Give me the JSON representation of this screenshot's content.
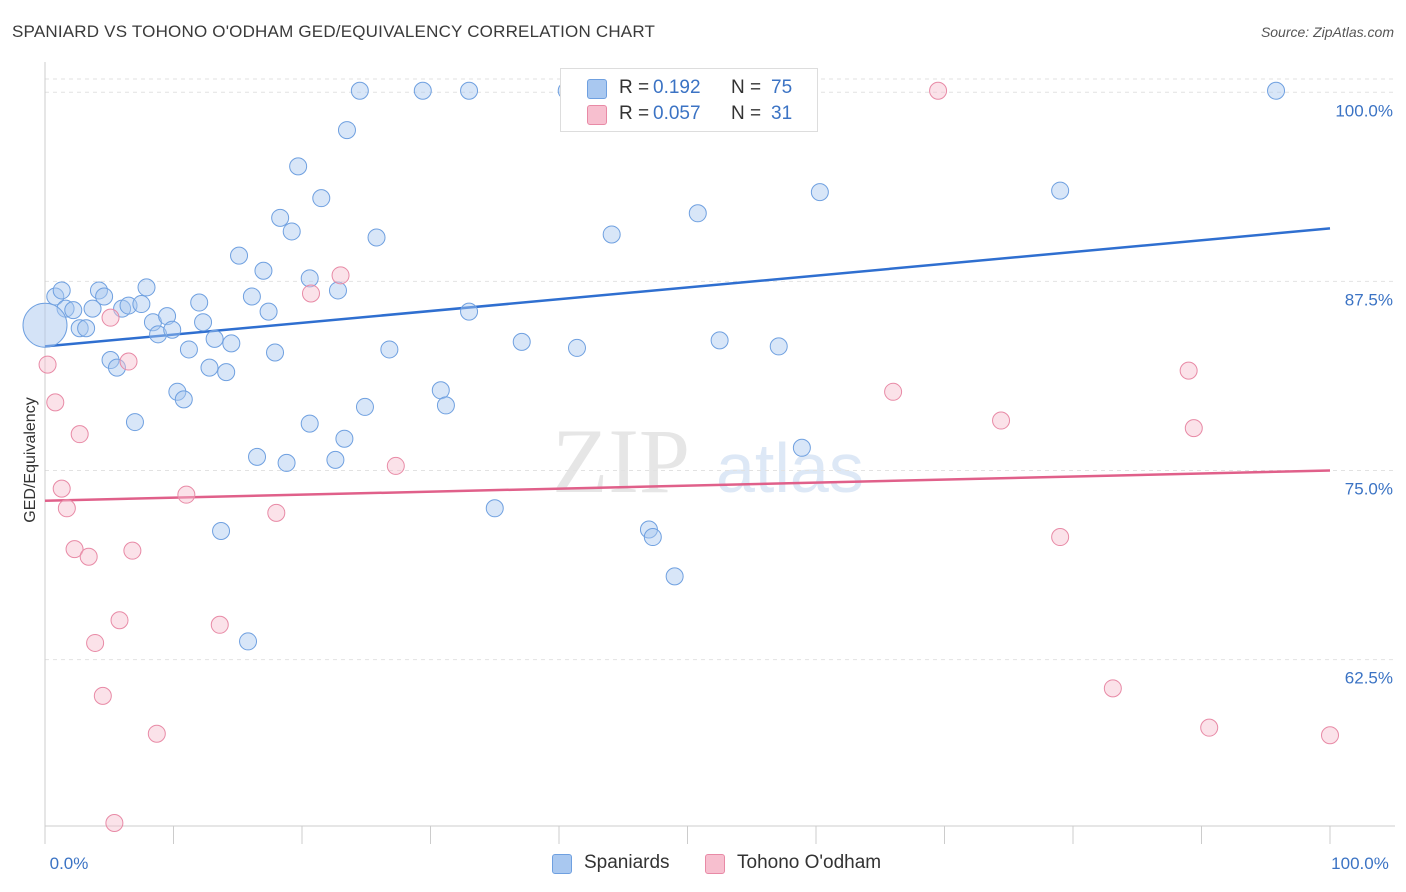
{
  "title": "SPANIARD VS TOHONO O'ODHAM GED/EQUIVALENCY CORRELATION CHART",
  "source": "Source: ZipAtlas.com",
  "watermark": {
    "zip": "ZIP",
    "atlas": "atlas"
  },
  "legend": {
    "r_label": "R =",
    "n_label": "N =",
    "rows": [
      {
        "r": "0.192",
        "n": "75",
        "color": "#a9c8f0",
        "border": "#6fa0e0"
      },
      {
        "r": "0.057",
        "n": "31",
        "color": "#f7bfcf",
        "border": "#e88aa6"
      }
    ]
  },
  "bottom_legend": [
    {
      "label": "Spaniards",
      "color": "#a9c8f0",
      "border": "#6fa0e0"
    },
    {
      "label": "Tohono O'odham",
      "color": "#f7bfcf",
      "border": "#e88aa6"
    }
  ],
  "chart_data": {
    "type": "scatter",
    "ylabel": "GED/Equivalency",
    "xlim": [
      0,
      100
    ],
    "ylim": [
      51.5,
      102
    ],
    "x_tick_labels": [
      "0.0%",
      "100.0%"
    ],
    "y_ticks": [
      {
        "value": 100.0,
        "label": "100.0%"
      },
      {
        "value": 87.5,
        "label": "87.5%"
      },
      {
        "value": 75.0,
        "label": "75.0%"
      },
      {
        "value": 62.5,
        "label": "62.5%"
      }
    ],
    "grid": "dashed horizontal",
    "series": [
      {
        "name": "Spaniards",
        "color": "#a9c8f0",
        "stroke": "#6fa0e0",
        "line_color": "#2f6fd0",
        "trend": {
          "x": [
            0,
            100
          ],
          "y": [
            83.2,
            91.0
          ]
        },
        "points": [
          {
            "x": 0.8,
            "y": 86.5
          },
          {
            "x": 1.3,
            "y": 86.9
          },
          {
            "x": 1.6,
            "y": 85.7
          },
          {
            "x": 2.2,
            "y": 85.6
          },
          {
            "x": 2.7,
            "y": 84.4
          },
          {
            "x": 3.2,
            "y": 84.4
          },
          {
            "x": 3.7,
            "y": 85.7
          },
          {
            "x": 4.2,
            "y": 86.9
          },
          {
            "x": 4.6,
            "y": 86.5
          },
          {
            "x": 5.1,
            "y": 82.3
          },
          {
            "x": 5.6,
            "y": 81.8
          },
          {
            "x": 6.0,
            "y": 85.7
          },
          {
            "x": 6.5,
            "y": 85.9
          },
          {
            "x": 7.0,
            "y": 78.2
          },
          {
            "x": 7.5,
            "y": 86.0
          },
          {
            "x": 7.9,
            "y": 87.1
          },
          {
            "x": 8.4,
            "y": 84.8
          },
          {
            "x": 8.8,
            "y": 84.0
          },
          {
            "x": 9.5,
            "y": 85.2
          },
          {
            "x": 9.9,
            "y": 84.3
          },
          {
            "x": 10.3,
            "y": 80.2
          },
          {
            "x": 10.8,
            "y": 79.7
          },
          {
            "x": 11.2,
            "y": 83.0
          },
          {
            "x": 12.0,
            "y": 86.1
          },
          {
            "x": 12.3,
            "y": 84.8
          },
          {
            "x": 12.8,
            "y": 81.8
          },
          {
            "x": 13.2,
            "y": 83.7
          },
          {
            "x": 13.7,
            "y": 71.0
          },
          {
            "x": 14.1,
            "y": 81.5
          },
          {
            "x": 14.5,
            "y": 83.4
          },
          {
            "x": 15.1,
            "y": 89.2
          },
          {
            "x": 15.8,
            "y": 63.7
          },
          {
            "x": 16.1,
            "y": 86.5
          },
          {
            "x": 16.5,
            "y": 75.9
          },
          {
            "x": 17.0,
            "y": 88.2
          },
          {
            "x": 17.4,
            "y": 85.5
          },
          {
            "x": 17.9,
            "y": 82.8
          },
          {
            "x": 18.3,
            "y": 91.7
          },
          {
            "x": 18.8,
            "y": 75.5
          },
          {
            "x": 19.2,
            "y": 90.8
          },
          {
            "x": 19.7,
            "y": 95.1
          },
          {
            "x": 20.6,
            "y": 87.7
          },
          {
            "x": 20.6,
            "y": 78.1
          },
          {
            "x": 21.5,
            "y": 93.0
          },
          {
            "x": 22.6,
            "y": 75.7
          },
          {
            "x": 22.8,
            "y": 86.9
          },
          {
            "x": 23.3,
            "y": 77.1
          },
          {
            "x": 23.5,
            "y": 97.5
          },
          {
            "x": 24.5,
            "y": 100.1
          },
          {
            "x": 24.9,
            "y": 79.2
          },
          {
            "x": 25.8,
            "y": 90.4
          },
          {
            "x": 26.8,
            "y": 83.0
          },
          {
            "x": 29.4,
            "y": 100.1
          },
          {
            "x": 30.8,
            "y": 80.3
          },
          {
            "x": 31.2,
            "y": 79.3
          },
          {
            "x": 33.0,
            "y": 100.1
          },
          {
            "x": 33.0,
            "y": 85.5
          },
          {
            "x": 35.0,
            "y": 72.5
          },
          {
            "x": 37.1,
            "y": 83.5
          },
          {
            "x": 40.6,
            "y": 100.1
          },
          {
            "x": 41.4,
            "y": 83.1
          },
          {
            "x": 44.1,
            "y": 99.6
          },
          {
            "x": 44.1,
            "y": 90.6
          },
          {
            "x": 47.0,
            "y": 71.1
          },
          {
            "x": 47.3,
            "y": 70.6
          },
          {
            "x": 49.0,
            "y": 68.0
          },
          {
            "x": 49.4,
            "y": 100.1
          },
          {
            "x": 50.8,
            "y": 92.0
          },
          {
            "x": 52.5,
            "y": 83.6
          },
          {
            "x": 57.1,
            "y": 83.2
          },
          {
            "x": 58.9,
            "y": 76.5
          },
          {
            "x": 60.3,
            "y": 93.4
          },
          {
            "x": 79.0,
            "y": 93.5
          },
          {
            "x": 95.8,
            "y": 100.1
          },
          {
            "x": 0.0,
            "y": 84.6
          }
        ]
      },
      {
        "name": "Tohono O'odham",
        "color": "#f7bfcf",
        "stroke": "#e88aa6",
        "line_color": "#e0608a",
        "trend": {
          "x": [
            0,
            100
          ],
          "y": [
            73.0,
            75.0
          ]
        },
        "points": [
          {
            "x": 0.2,
            "y": 82.0
          },
          {
            "x": 0.8,
            "y": 79.5
          },
          {
            "x": 1.3,
            "y": 73.8
          },
          {
            "x": 1.7,
            "y": 72.5
          },
          {
            "x": 2.3,
            "y": 69.8
          },
          {
            "x": 2.7,
            "y": 77.4
          },
          {
            "x": 3.4,
            "y": 69.3
          },
          {
            "x": 3.9,
            "y": 63.6
          },
          {
            "x": 4.5,
            "y": 60.1
          },
          {
            "x": 5.1,
            "y": 85.1
          },
          {
            "x": 5.4,
            "y": 51.7
          },
          {
            "x": 5.8,
            "y": 65.1
          },
          {
            "x": 6.5,
            "y": 82.2
          },
          {
            "x": 6.8,
            "y": 69.7
          },
          {
            "x": 8.7,
            "y": 57.6
          },
          {
            "x": 11.0,
            "y": 73.4
          },
          {
            "x": 13.6,
            "y": 64.8
          },
          {
            "x": 18.0,
            "y": 72.2
          },
          {
            "x": 20.7,
            "y": 86.7
          },
          {
            "x": 23.0,
            "y": 87.9
          },
          {
            "x": 27.3,
            "y": 75.3
          },
          {
            "x": 47.9,
            "y": 100.1
          },
          {
            "x": 66.0,
            "y": 80.2
          },
          {
            "x": 69.5,
            "y": 100.1
          },
          {
            "x": 74.4,
            "y": 78.3
          },
          {
            "x": 79.0,
            "y": 70.6
          },
          {
            "x": 83.1,
            "y": 60.6
          },
          {
            "x": 89.0,
            "y": 81.6
          },
          {
            "x": 89.4,
            "y": 77.8
          },
          {
            "x": 90.6,
            "y": 58.0
          },
          {
            "x": 100.0,
            "y": 57.5
          }
        ]
      }
    ]
  }
}
